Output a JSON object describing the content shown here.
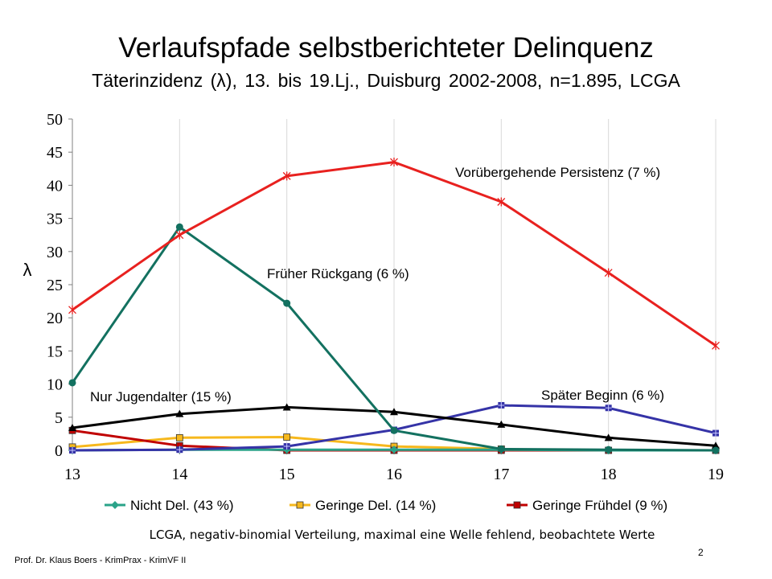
{
  "slide": {
    "title": "Verlaufspfade selbstberichteter Delinquenz",
    "subtitle": "Täterinzidenz (λ), 13. bis 19.Lj., Duisburg 2002-2008, n=1.895, LCGA",
    "note": "LCGA, negativ-binomial Verteilung, maximal eine Welle fehlend, beobachtete Werte",
    "footer": "Prof. Dr. Klaus Boers - KrimPrax - KrimVF II",
    "page_number": "2"
  },
  "chart_data": {
    "type": "line",
    "x": [
      13,
      14,
      15,
      16,
      17,
      18,
      19
    ],
    "xlim": [
      13,
      19
    ],
    "ylim": [
      0,
      50
    ],
    "yticks": [
      0,
      5,
      10,
      15,
      20,
      25,
      30,
      35,
      40,
      45,
      50
    ],
    "ylabel": "λ",
    "grid": "vertical",
    "series": [
      {
        "key": "vp",
        "values": [
          21.2,
          32.5,
          41.4,
          43.5,
          37.5,
          26.8,
          15.8
        ],
        "color": "#e8211f",
        "marker": "star",
        "label": "Vorübergehende  Persistenz (7 %)"
      },
      {
        "key": "fr",
        "values": [
          10.2,
          33.7,
          22.2,
          3.0,
          0.2,
          0.1,
          0.0
        ],
        "color": "#137160",
        "marker": "circle",
        "label": "Früher Rückgang  (6 %)"
      },
      {
        "key": "nj",
        "values": [
          3.4,
          5.5,
          6.5,
          5.8,
          3.9,
          1.9,
          0.7
        ],
        "color": "#000000",
        "marker": "triangle",
        "label": "Nur Jugendalter  (15 %)"
      },
      {
        "key": "sb",
        "values": [
          0.0,
          0.1,
          0.6,
          3.1,
          6.8,
          6.4,
          2.6
        ],
        "color": "#3533a7",
        "marker": "square-cross",
        "label": "Später Beginn  (6 %)"
      },
      {
        "key": "nd",
        "name": "Nicht Del. (43 %)",
        "values": [
          0.0,
          0.1,
          0.1,
          0.1,
          0.1,
          0.0,
          0.0
        ],
        "color": "#2aa389",
        "marker": "diamond"
      },
      {
        "key": "gd",
        "name": "Geringe Del.  (14 %)",
        "values": [
          0.5,
          1.9,
          2.0,
          0.6,
          0.2,
          null,
          null
        ],
        "color": "#f6b81d",
        "marker": "square"
      },
      {
        "key": "gf",
        "name": "Geringe Frühdel  (9 %)",
        "values": [
          3.0,
          0.7,
          0.0,
          0.0,
          0.0,
          0.0,
          0.0
        ],
        "color": "#c00000",
        "marker": "square"
      }
    ],
    "legend": "bottom"
  }
}
